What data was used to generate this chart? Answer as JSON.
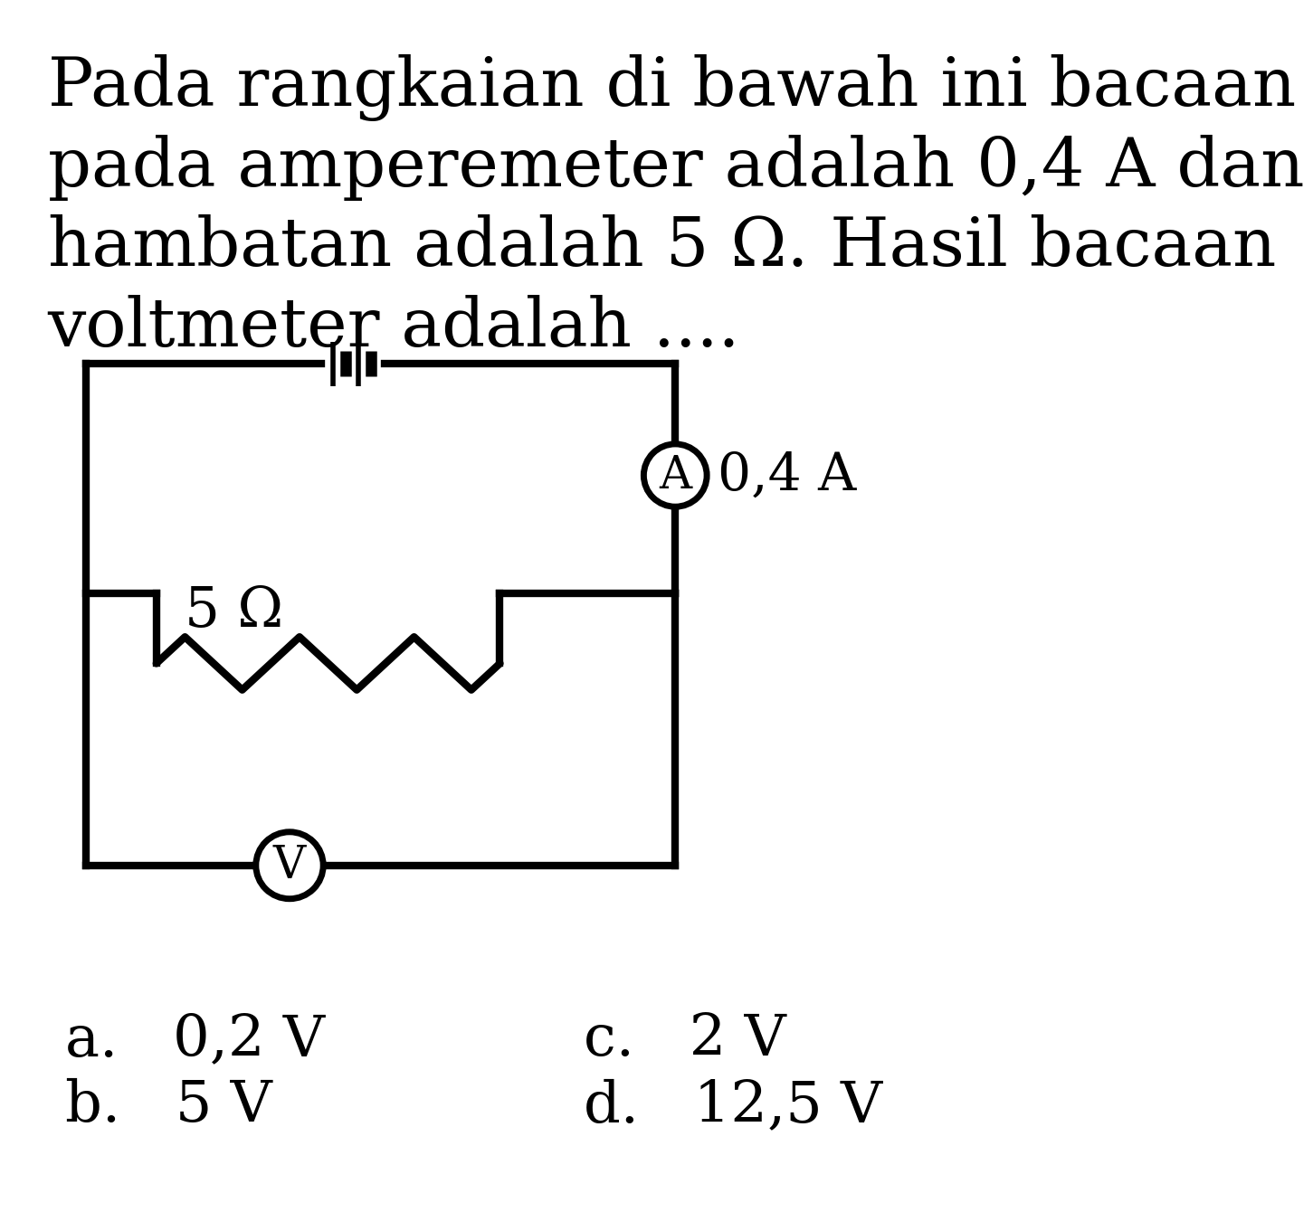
{
  "bg_color": "#ffffff",
  "text_color": "#000000",
  "title_lines": [
    "Pada rangkaian di bawah ini bacaan",
    "pada amperemeter adalah 0,4 A dan",
    "hambatan adalah 5 Ω. Hasil bacaan",
    "voltmeter adalah ...."
  ],
  "options": [
    [
      "a.   0,2 V",
      "c.   2 V"
    ],
    [
      "b.   5 V",
      "d.   12,5 V"
    ]
  ],
  "circuit": {
    "ammeter_label": "A",
    "ammeter_value": "0,4 A",
    "resistor_label": "5 Ω",
    "voltmeter_label": "V"
  }
}
